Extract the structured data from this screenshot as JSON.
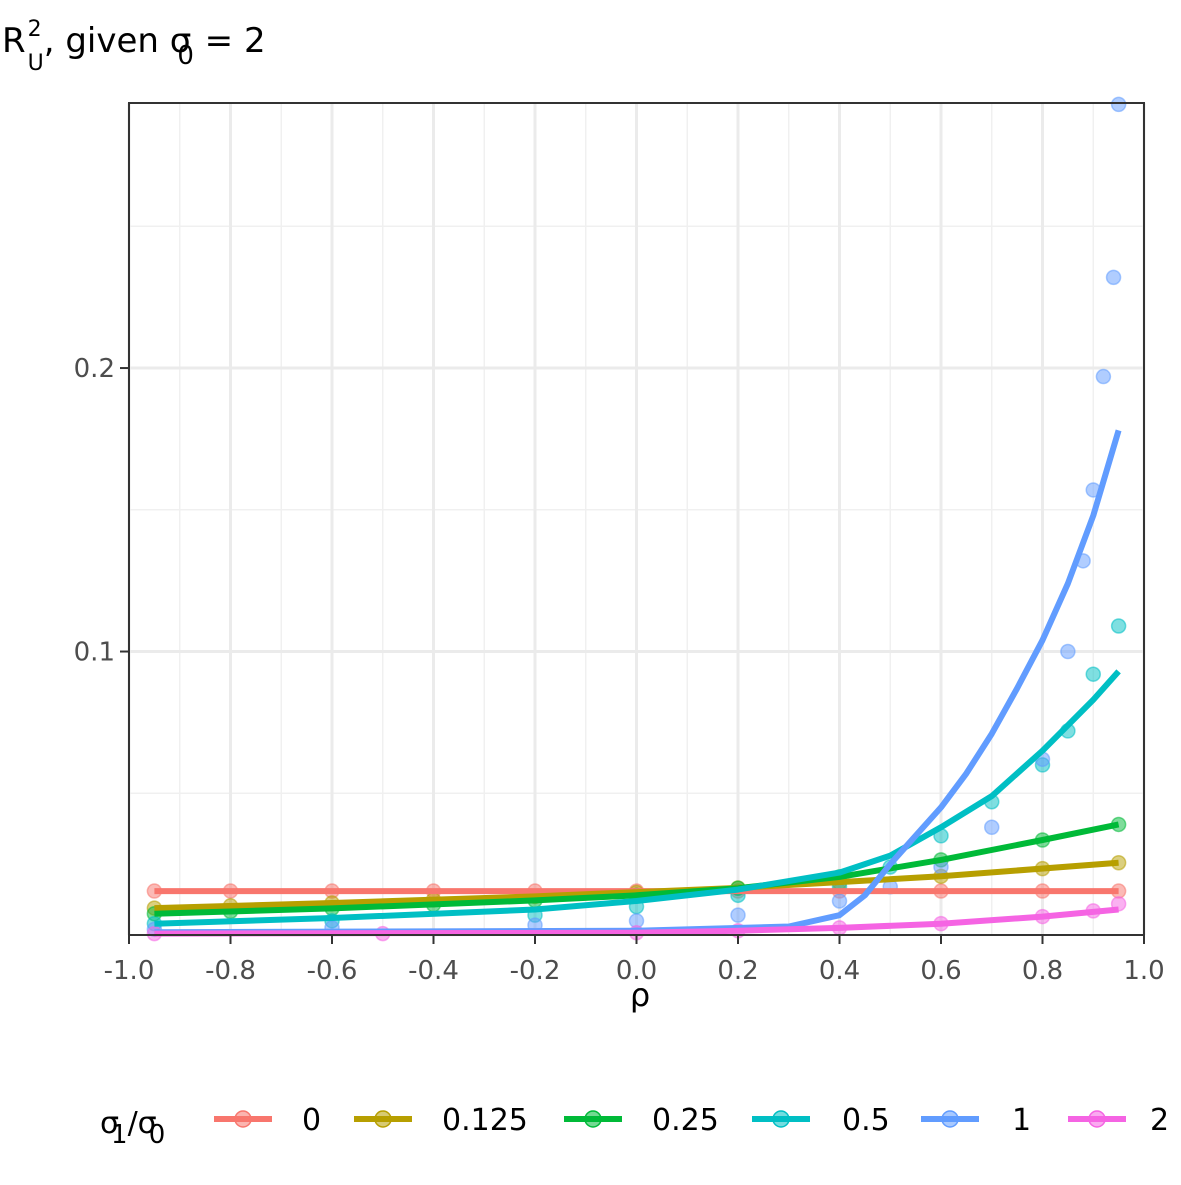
{
  "chart_data": {
    "type": "scatter",
    "title": "R_U^2, given σ_0 = 2",
    "title_parts": {
      "main": "R",
      "sup": "2",
      "sub": "U",
      "rest": ", given σ",
      "rest_sub": "0",
      "tail": " = 2"
    },
    "xlabel": "ρ",
    "ylabel": "",
    "xlim": [
      -1.0,
      1.0
    ],
    "ylim": [
      0.0,
      0.2935
    ],
    "x_ticks": [
      -1.0,
      -0.8,
      -0.6,
      -0.4,
      -0.2,
      0.0,
      0.2,
      0.4,
      0.6,
      0.8,
      1.0
    ],
    "x_tick_labels": [
      "-1.0",
      "-0.8",
      "-0.6",
      "-0.4",
      "-0.2",
      "0.0",
      "0.2",
      "0.4",
      "0.6",
      "0.8",
      "1.0"
    ],
    "y_ticks": [
      0.1,
      0.2
    ],
    "y_tick_labels": [
      "0.1",
      "0.2"
    ],
    "grid": true,
    "legend": {
      "position": "bottom",
      "title": "σ1/σ0",
      "title_parts": {
        "a": "σ",
        "a_sub": "1",
        "slash": "/σ",
        "b_sub": "0"
      },
      "entries": [
        "0",
        "0.125",
        "0.25",
        "0.5",
        "1",
        "2"
      ]
    },
    "series": [
      {
        "name": "0",
        "color": "#F8766D",
        "points": {
          "x": [
            -0.95,
            -0.8,
            -0.6,
            -0.4,
            -0.2,
            0.0,
            0.2,
            0.4,
            0.6,
            0.8,
            0.95
          ],
          "y": [
            0.0155,
            0.0155,
            0.0155,
            0.0155,
            0.0155,
            0.0155,
            0.0155,
            0.0155,
            0.0155,
            0.0155,
            0.0155
          ]
        },
        "curve": {
          "x": [
            -0.95,
            0.95
          ],
          "y": [
            0.0155,
            0.0155
          ]
        }
      },
      {
        "name": "0.125",
        "color": "#B79F00",
        "points": {
          "x": [
            -0.95,
            -0.8,
            -0.6,
            -0.4,
            -0.2,
            0.0,
            0.2,
            0.4,
            0.6,
            0.8,
            0.95
          ],
          "y": [
            0.0095,
            0.0103,
            0.0113,
            0.0124,
            0.0136,
            0.015,
            0.0166,
            0.0185,
            0.0207,
            0.0234,
            0.0255
          ]
        },
        "curve": {
          "x": [
            -0.95,
            -0.6,
            -0.2,
            0.2,
            0.6,
            0.95
          ],
          "y": [
            0.0095,
            0.0113,
            0.0136,
            0.0166,
            0.0207,
            0.0255
          ]
        }
      },
      {
        "name": "0.25",
        "color": "#00BA38",
        "points": {
          "x": [
            -0.95,
            -0.8,
            -0.6,
            -0.4,
            -0.2,
            0.0,
            0.2,
            0.4,
            0.6,
            0.8,
            0.95
          ],
          "y": [
            0.0075,
            0.0083,
            0.0094,
            0.0107,
            0.0122,
            0.014,
            0.0165,
            0.0205,
            0.0265,
            0.0335,
            0.039
          ]
        },
        "curve": {
          "x": [
            -0.95,
            -0.6,
            -0.2,
            0.0,
            0.2,
            0.4,
            0.6,
            0.8,
            0.95
          ],
          "y": [
            0.0075,
            0.0094,
            0.0122,
            0.014,
            0.0165,
            0.0205,
            0.0265,
            0.0335,
            0.039
          ]
        }
      },
      {
        "name": "0.5",
        "color": "#00BFC4",
        "points": {
          "x": [
            -0.95,
            -0.6,
            -0.2,
            0.0,
            0.2,
            0.4,
            0.5,
            0.6,
            0.7,
            0.8,
            0.85,
            0.9,
            0.95
          ],
          "y": [
            0.004,
            0.005,
            0.007,
            0.01,
            0.014,
            0.017,
            0.024,
            0.035,
            0.047,
            0.06,
            0.072,
            0.092,
            0.109
          ]
        },
        "curve": {
          "x": [
            -0.95,
            -0.6,
            -0.2,
            0.0,
            0.2,
            0.4,
            0.5,
            0.6,
            0.7,
            0.8,
            0.9,
            0.95
          ],
          "y": [
            0.004,
            0.006,
            0.009,
            0.012,
            0.016,
            0.022,
            0.028,
            0.038,
            0.049,
            0.065,
            0.083,
            0.093
          ]
        }
      },
      {
        "name": "1",
        "color": "#619CFF",
        "points": {
          "x": [
            -0.95,
            -0.6,
            -0.2,
            0.0,
            0.2,
            0.4,
            0.5,
            0.6,
            0.7,
            0.8,
            0.85,
            0.88,
            0.9,
            0.92,
            0.94,
            0.95
          ],
          "y": [
            0.002,
            0.0025,
            0.0035,
            0.005,
            0.007,
            0.012,
            0.017,
            0.024,
            0.038,
            0.062,
            0.1,
            0.132,
            0.157,
            0.197,
            0.232,
            0.293
          ]
        },
        "curve": {
          "x": [
            -0.95,
            0.0,
            0.3,
            0.4,
            0.45,
            0.5,
            0.55,
            0.6,
            0.65,
            0.7,
            0.75,
            0.8,
            0.85,
            0.9,
            0.95
          ],
          "y": [
            0.001,
            0.0015,
            0.003,
            0.007,
            0.014,
            0.025,
            0.035,
            0.045,
            0.057,
            0.071,
            0.087,
            0.104,
            0.124,
            0.148,
            0.178
          ]
        }
      },
      {
        "name": "2",
        "color": "#F564E3",
        "points": {
          "x": [
            -0.95,
            -0.5,
            0.0,
            0.2,
            0.4,
            0.6,
            0.8,
            0.9,
            0.95
          ],
          "y": [
            0.0005,
            0.0005,
            0.0008,
            0.0015,
            0.0025,
            0.004,
            0.0065,
            0.0085,
            0.011
          ]
        },
        "curve": {
          "x": [
            -0.95,
            0.0,
            0.2,
            0.4,
            0.6,
            0.8,
            0.95
          ],
          "y": [
            0.0005,
            0.0008,
            0.0015,
            0.0025,
            0.004,
            0.0065,
            0.009
          ]
        }
      }
    ]
  }
}
